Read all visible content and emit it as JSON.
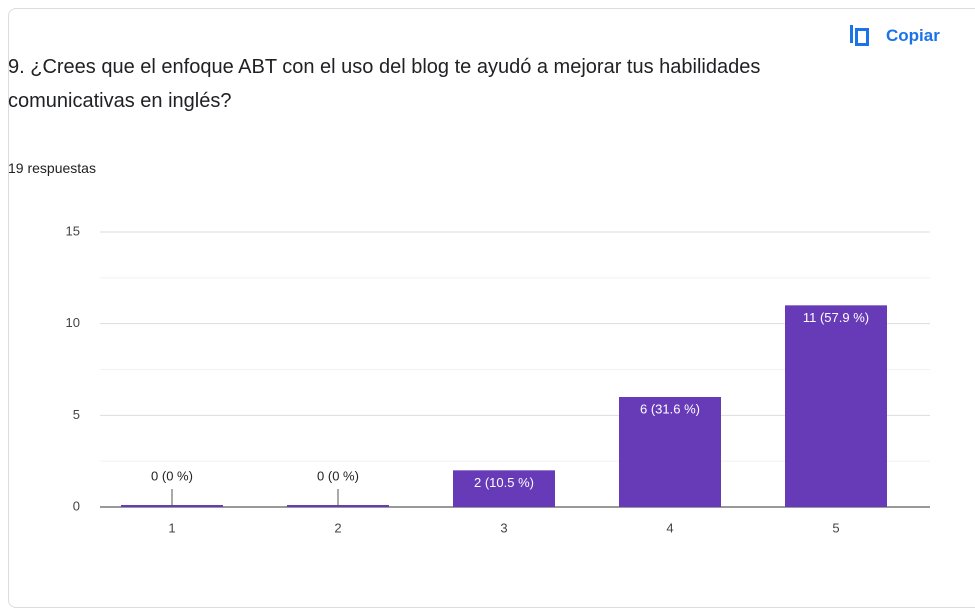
{
  "copy_label": "Copiar",
  "chart_data": {
    "type": "bar",
    "title": "9. ¿Crees que el enfoque ABT con el uso del blog te ayudó a mejorar tus habilidades comunicativas en inglés?",
    "subtitle": "19 respuestas",
    "categories": [
      "1",
      "2",
      "3",
      "4",
      "5"
    ],
    "values": [
      0,
      0,
      2,
      6,
      11
    ],
    "value_labels": [
      "0 (0 %)",
      "0 (0 %)",
      "2 (10.5 %)",
      "6 (31.6 %)",
      "11 (57.9 %)"
    ],
    "color": "#673ab7",
    "ylim": [
      0,
      15
    ],
    "yticks": [
      0,
      5,
      10,
      15
    ],
    "grid": true
  }
}
